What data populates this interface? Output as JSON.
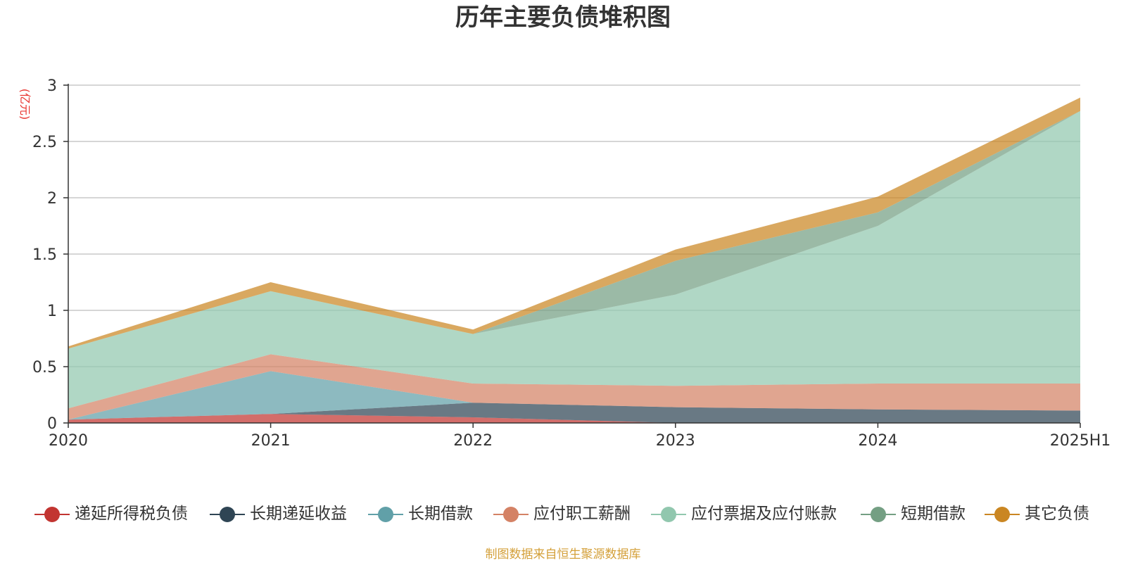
{
  "title": "历年主要负债堆积图",
  "unit_label": "(亿元)",
  "source": "制图数据来自恒生聚源数据库",
  "chart_data": {
    "type": "area",
    "stacked": true,
    "title": "历年主要负债堆积图",
    "ylabel": "(亿元)",
    "xlabel": "",
    "ylim": [
      0,
      3
    ],
    "y_ticks": [
      "0",
      "0.5",
      "1",
      "1.5",
      "2",
      "2.5",
      "3"
    ],
    "categories": [
      "2020",
      "2021",
      "2022",
      "2023",
      "2024",
      "2025H1"
    ],
    "grid": true,
    "legend_position": "bottom",
    "series": [
      {
        "name": "递延所得税负债",
        "color": "#c23531",
        "values": [
          0.03,
          0.08,
          0.05,
          0.0,
          0.0,
          0.0
        ]
      },
      {
        "name": "长期递延收益",
        "color": "#2f4554",
        "values": [
          0.0,
          0.0,
          0.13,
          0.14,
          0.12,
          0.11
        ]
      },
      {
        "name": "长期借款",
        "color": "#61a0a8",
        "values": [
          0.0,
          0.38,
          0.0,
          0.0,
          0.0,
          0.0
        ]
      },
      {
        "name": "应付职工薪酬",
        "color": "#d48265",
        "values": [
          0.1,
          0.15,
          0.17,
          0.19,
          0.23,
          0.24
        ]
      },
      {
        "name": "应付票据及应付账款",
        "color": "#91c7ae",
        "values": [
          0.53,
          0.56,
          0.44,
          0.81,
          1.4,
          2.42
        ]
      },
      {
        "name": "短期借款",
        "color": "#749f83",
        "values": [
          0.0,
          0.0,
          0.0,
          0.3,
          0.12,
          0.0
        ]
      },
      {
        "name": "其它负债",
        "color": "#ca8622",
        "values": [
          0.02,
          0.08,
          0.04,
          0.1,
          0.14,
          0.12
        ]
      }
    ]
  }
}
